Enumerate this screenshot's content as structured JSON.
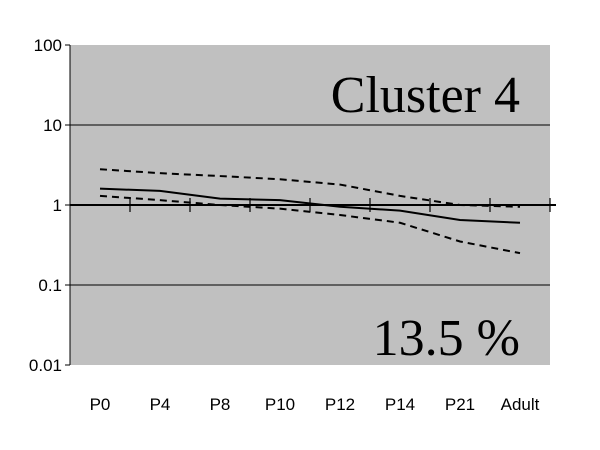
{
  "chart_data": {
    "type": "line",
    "y_scale": "log",
    "ylim": [
      0.01,
      100
    ],
    "y_ticks": [
      "100",
      "10",
      "1",
      "0.1",
      "0.01"
    ],
    "categories": [
      "P0",
      "P4",
      "P8",
      "P10",
      "P12",
      "P14",
      "P21",
      "Adult"
    ],
    "series": [
      {
        "line_style": "dashed",
        "values": [
          2.8,
          2.5,
          2.3,
          2.1,
          1.8,
          1.3,
          1.0,
          0.95
        ]
      },
      {
        "line_style": "solid",
        "values": [
          1.6,
          1.5,
          1.2,
          1.15,
          0.95,
          0.85,
          0.65,
          0.6
        ]
      },
      {
        "line_style": "dashed",
        "values": [
          1.3,
          1.15,
          1.0,
          0.9,
          0.75,
          0.6,
          0.35,
          0.25
        ]
      }
    ],
    "annotations": [
      "Cluster 4",
      "13.5 %"
    ],
    "background_color": "#c0c0c0",
    "line_color": "#000000"
  }
}
